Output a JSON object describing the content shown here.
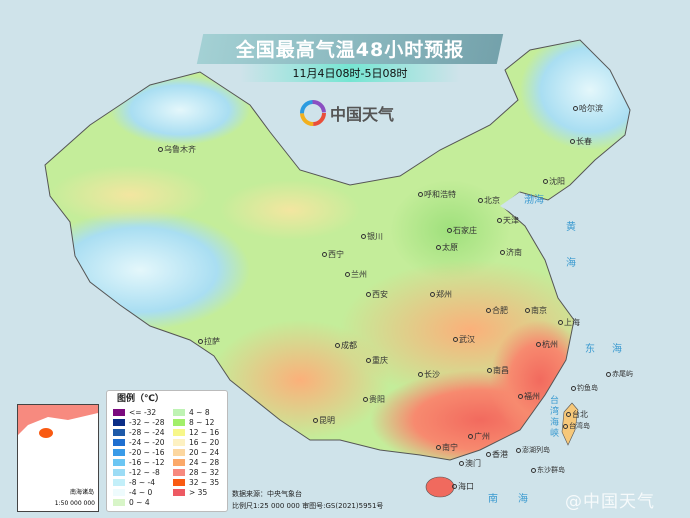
{
  "header": {
    "title": "全国最高气温48小时预报",
    "subtitle": "11月4日08时-5日08时",
    "logo_text": "中国天气"
  },
  "cities": [
    "哈尔滨",
    "长春",
    "沈阳",
    "乌鲁木齐",
    "呼和浩特",
    "北京",
    "天津",
    "石家庄",
    "太原",
    "济南",
    "银川",
    "西宁",
    "兰州",
    "西安",
    "郑州",
    "合肥",
    "南京",
    "上海",
    "杭州",
    "武汉",
    "成都",
    "重庆",
    "长沙",
    "南昌",
    "福州",
    "台北",
    "贵阳",
    "昆明",
    "南宁",
    "广州",
    "香港",
    "澳门",
    "海口",
    "拉萨"
  ],
  "places": [
    "台湾岛",
    "钓鱼岛",
    "赤尾屿",
    "澎湖列岛",
    "东沙群岛"
  ],
  "seas": {
    "bohai": "渤海",
    "huanghai_1": "黄",
    "huanghai_2": "海",
    "donghai_1": "东",
    "donghai_2": "海",
    "nanhai_1": "南",
    "nanhai_2": "海",
    "strait": [
      "台",
      "湾",
      "海",
      "峡"
    ]
  },
  "legend": {
    "title": "图例（℃）",
    "items": [
      {
        "label": "<= -32",
        "color": "#7b0a7e"
      },
      {
        "label": "-32 ~ -28",
        "color": "#0b2d86"
      },
      {
        "label": "-28 ~ -24",
        "color": "#1f5aa8"
      },
      {
        "label": "-24 ~ -20",
        "color": "#1f6fd0"
      },
      {
        "label": "-20 ~ -16",
        "color": "#3a9be8"
      },
      {
        "label": "-16 ~ -12",
        "color": "#6cc6f3"
      },
      {
        "label": "-12 ~ -8",
        "color": "#9cdcf5"
      },
      {
        "label": "-8 ~ -4",
        "color": "#c3eff9"
      },
      {
        "label": "-4 ~ 0",
        "color": "#eefbfd"
      },
      {
        "label": "0 ~ 4",
        "color": "#d8f5c8"
      },
      {
        "label": "4 ~ 8",
        "color": "#bff3b4"
      },
      {
        "label": "8 ~ 12",
        "color": "#a2ef6a"
      },
      {
        "label": "12 ~ 16",
        "color": "#f7f78a"
      },
      {
        "label": "16 ~ 20",
        "color": "#fdf1c2"
      },
      {
        "label": "20 ~ 24",
        "color": "#fcd7a0"
      },
      {
        "label": "24 ~ 28",
        "color": "#fba96a"
      },
      {
        "label": "28 ~ 32",
        "color": "#f78a7f"
      },
      {
        "label": "32 ~ 35",
        "color": "#f95a12"
      },
      {
        "label": "> 35",
        "color": "#ed5a63"
      }
    ]
  },
  "inset": {
    "title": "南海诸岛",
    "scale": "1:50 000 000"
  },
  "footer": {
    "source": "数据来源：中央气象台",
    "scale": "比例尺1:25 000 000 审图号:GS(2021)5951号"
  },
  "watermark": "@中国天气"
}
